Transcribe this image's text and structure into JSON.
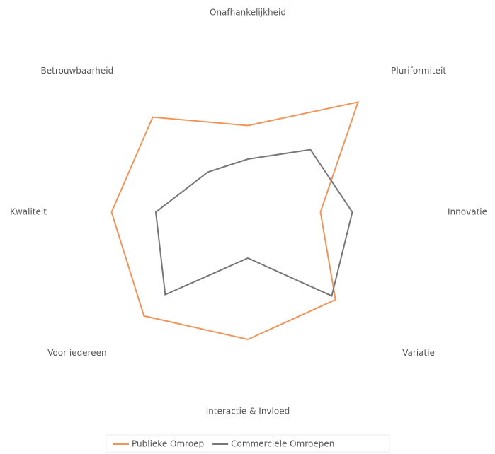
{
  "chart_data": {
    "type": "radar",
    "categories": [
      "Onafhankelijkheid",
      "Pluriformiteit",
      "Innovatie",
      "Variatie",
      "Interactie & Invloed",
      "Voor iedereen",
      "Kwaliteit",
      "Betrouwbaarheid"
    ],
    "ylim": [
      0,
      10
    ],
    "legend": "bottom",
    "series": [
      {
        "name": "Publieke Omroep",
        "color": "#f0955a",
        "values": [
          4.9,
          8.8,
          4.1,
          7.0,
          7.2,
          8.3,
          7.7,
          7.6
        ]
      },
      {
        "name": "Commerciele Omroepen",
        "color": "#77777a",
        "values": [
          3.0,
          5.0,
          5.9,
          6.7,
          2.6,
          6.6,
          5.2,
          3.2
        ]
      }
    ]
  }
}
